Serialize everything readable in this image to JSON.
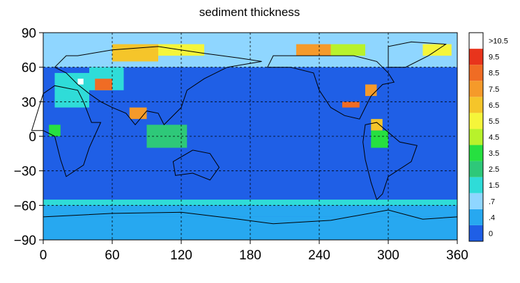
{
  "title": "sediment thickness",
  "x_ticks": [
    "0",
    "60",
    "120",
    "180",
    "240",
    "300",
    "360"
  ],
  "y_ticks": [
    "90",
    "60",
    "30",
    "0",
    "−30",
    "−60",
    "−90"
  ],
  "colorbar": {
    "labels": [
      "0",
      ".4",
      ".7",
      "1.5",
      "2.5",
      "3.5",
      "4.5",
      "5.5",
      "6.5",
      "7.5",
      "8.5",
      "9.5",
      ">10.5"
    ],
    "colors": [
      "#1f5fe6",
      "#27a8f0",
      "#8fd6ff",
      "#2fdcd8",
      "#2ec879",
      "#26e040",
      "#b8f22b",
      "#f5f53a",
      "#f5c52a",
      "#f59a2a",
      "#f06c24",
      "#e8341c",
      "#ffffff"
    ]
  },
  "chart_data": {
    "type": "heatmap",
    "title": "sediment thickness",
    "xlim": [
      0,
      360
    ],
    "ylim": [
      -90,
      90
    ],
    "x_ticks": [
      0,
      60,
      120,
      180,
      240,
      300,
      360
    ],
    "y_ticks": [
      90,
      60,
      30,
      0,
      -30,
      -60,
      -90
    ],
    "grid": true,
    "grid_style": "dashed",
    "legend": "colorbar-right",
    "colorbar_classes": [
      "0",
      ".4",
      ".7",
      "1.5",
      "2.5",
      "3.5",
      "4.5",
      "5.5",
      "6.5",
      "7.5",
      "8.5",
      "9.5",
      ">10.5"
    ],
    "cell_size_deg": 5,
    "background_class": 0,
    "regions": [
      {
        "lon": [
          0,
          360
        ],
        "lat": [
          -70,
          -60
        ],
        "class": 1
      },
      {
        "lon": [
          0,
          360
        ],
        "lat": [
          -90,
          -70
        ],
        "class": 1
      },
      {
        "lon": [
          0,
          360
        ],
        "lat": [
          60,
          90
        ],
        "class": 2
      },
      {
        "lon": [
          10,
          40
        ],
        "lat": [
          25,
          55
        ],
        "class": 3
      },
      {
        "lon": [
          40,
          70
        ],
        "lat": [
          40,
          60
        ],
        "class": 3
      },
      {
        "lon": [
          60,
          100
        ],
        "lat": [
          65,
          80
        ],
        "class": 8
      },
      {
        "lon": [
          100,
          140
        ],
        "lat": [
          70,
          80
        ],
        "class": 7
      },
      {
        "lon": [
          220,
          250
        ],
        "lat": [
          70,
          80
        ],
        "class": 9
      },
      {
        "lon": [
          250,
          280
        ],
        "lat": [
          70,
          80
        ],
        "class": 6
      },
      {
        "lon": [
          330,
          355
        ],
        "lat": [
          70,
          80
        ],
        "class": 7
      },
      {
        "lon": [
          45,
          60
        ],
        "lat": [
          40,
          50
        ],
        "class": 10
      },
      {
        "lon": [
          75,
          90
        ],
        "lat": [
          15,
          25
        ],
        "class": 9
      },
      {
        "lon": [
          260,
          275
        ],
        "lat": [
          25,
          30
        ],
        "class": 10
      },
      {
        "lon": [
          280,
          290
        ],
        "lat": [
          35,
          45
        ],
        "class": 9
      },
      {
        "lon": [
          285,
          295
        ],
        "lat": [
          5,
          15
        ],
        "class": 8
      },
      {
        "lon": [
          30,
          35
        ],
        "lat": [
          45,
          50
        ],
        "class": 12
      },
      {
        "lon": [
          0,
          360
        ],
        "lat": [
          -60,
          -55
        ],
        "class": 3
      },
      {
        "lon": [
          90,
          125
        ],
        "lat": [
          -10,
          10
        ],
        "class": 4
      },
      {
        "lon": [
          285,
          300
        ],
        "lat": [
          -10,
          5
        ],
        "class": 5
      },
      {
        "lon": [
          5,
          15
        ],
        "lat": [
          0,
          10
        ],
        "class": 5
      }
    ]
  }
}
